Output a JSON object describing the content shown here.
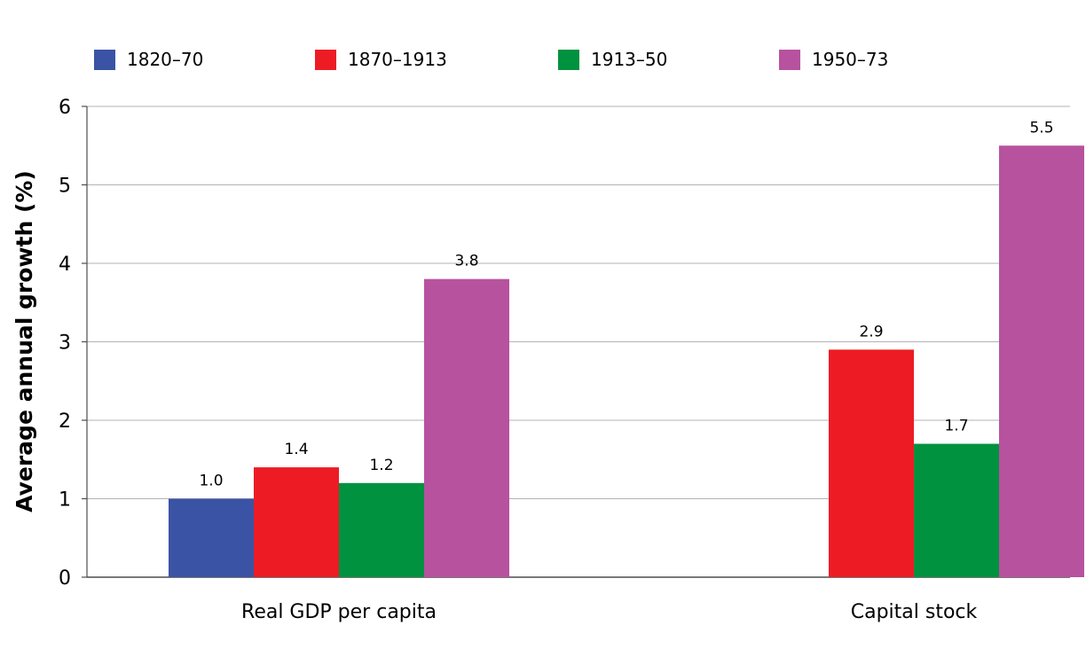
{
  "chart_data": {
    "type": "bar",
    "categories": [
      "Real GDP per capita",
      "Capital stock"
    ],
    "series": [
      {
        "name": "1820–70",
        "color": "#3b53a4",
        "values": [
          1.0,
          null
        ]
      },
      {
        "name": "1870–1913",
        "color": "#ed1c24",
        "values": [
          1.4,
          2.9
        ]
      },
      {
        "name": "1913–50",
        "color": "#00923f",
        "values": [
          1.2,
          1.7
        ]
      },
      {
        "name": "1950–73",
        "color": "#b7529f",
        "values": [
          3.8,
          5.5
        ]
      }
    ],
    "value_labels": [
      [
        "1.0",
        null
      ],
      [
        "1.4",
        "2.9"
      ],
      [
        "1.2",
        "1.7"
      ],
      [
        "3.8",
        "5.5"
      ]
    ],
    "xlabel": "",
    "ylabel": "Average annual growth (%)",
    "ylim": [
      0,
      6
    ],
    "yticks": [
      0,
      1,
      2,
      3,
      4,
      5,
      6
    ],
    "grid": true,
    "legend": "top"
  }
}
